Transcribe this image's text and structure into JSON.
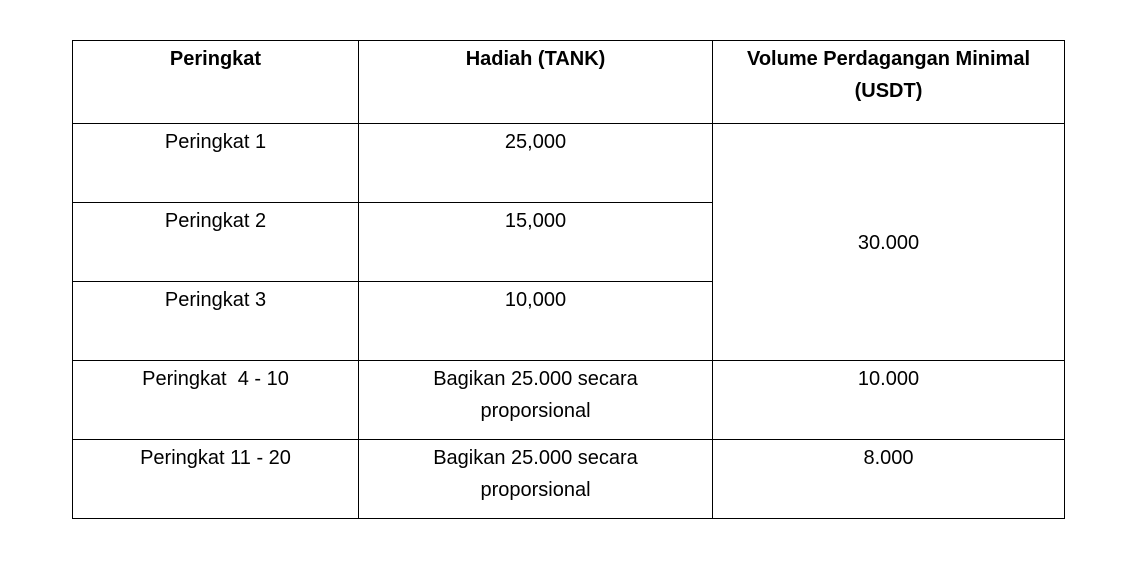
{
  "table": {
    "headers": [
      "Peringkat",
      "Hadiah (TANK)",
      "Volume Perdagangan Minimal (USDT)"
    ],
    "rows": [
      {
        "rank": "Peringkat 1",
        "reward": "25,000",
        "volume": "30.000"
      },
      {
        "rank": "Peringkat 2",
        "reward": "15,000"
      },
      {
        "rank": "Peringkat 3",
        "reward": "10,000"
      },
      {
        "rank": "Peringkat  4 - 10",
        "reward": "Bagikan 25.000 secara proporsional",
        "volume": "10.000"
      },
      {
        "rank": "Peringkat 11 - 20",
        "reward": "Bagikan 25.000 secara proporsional",
        "volume": "8.000"
      }
    ]
  }
}
